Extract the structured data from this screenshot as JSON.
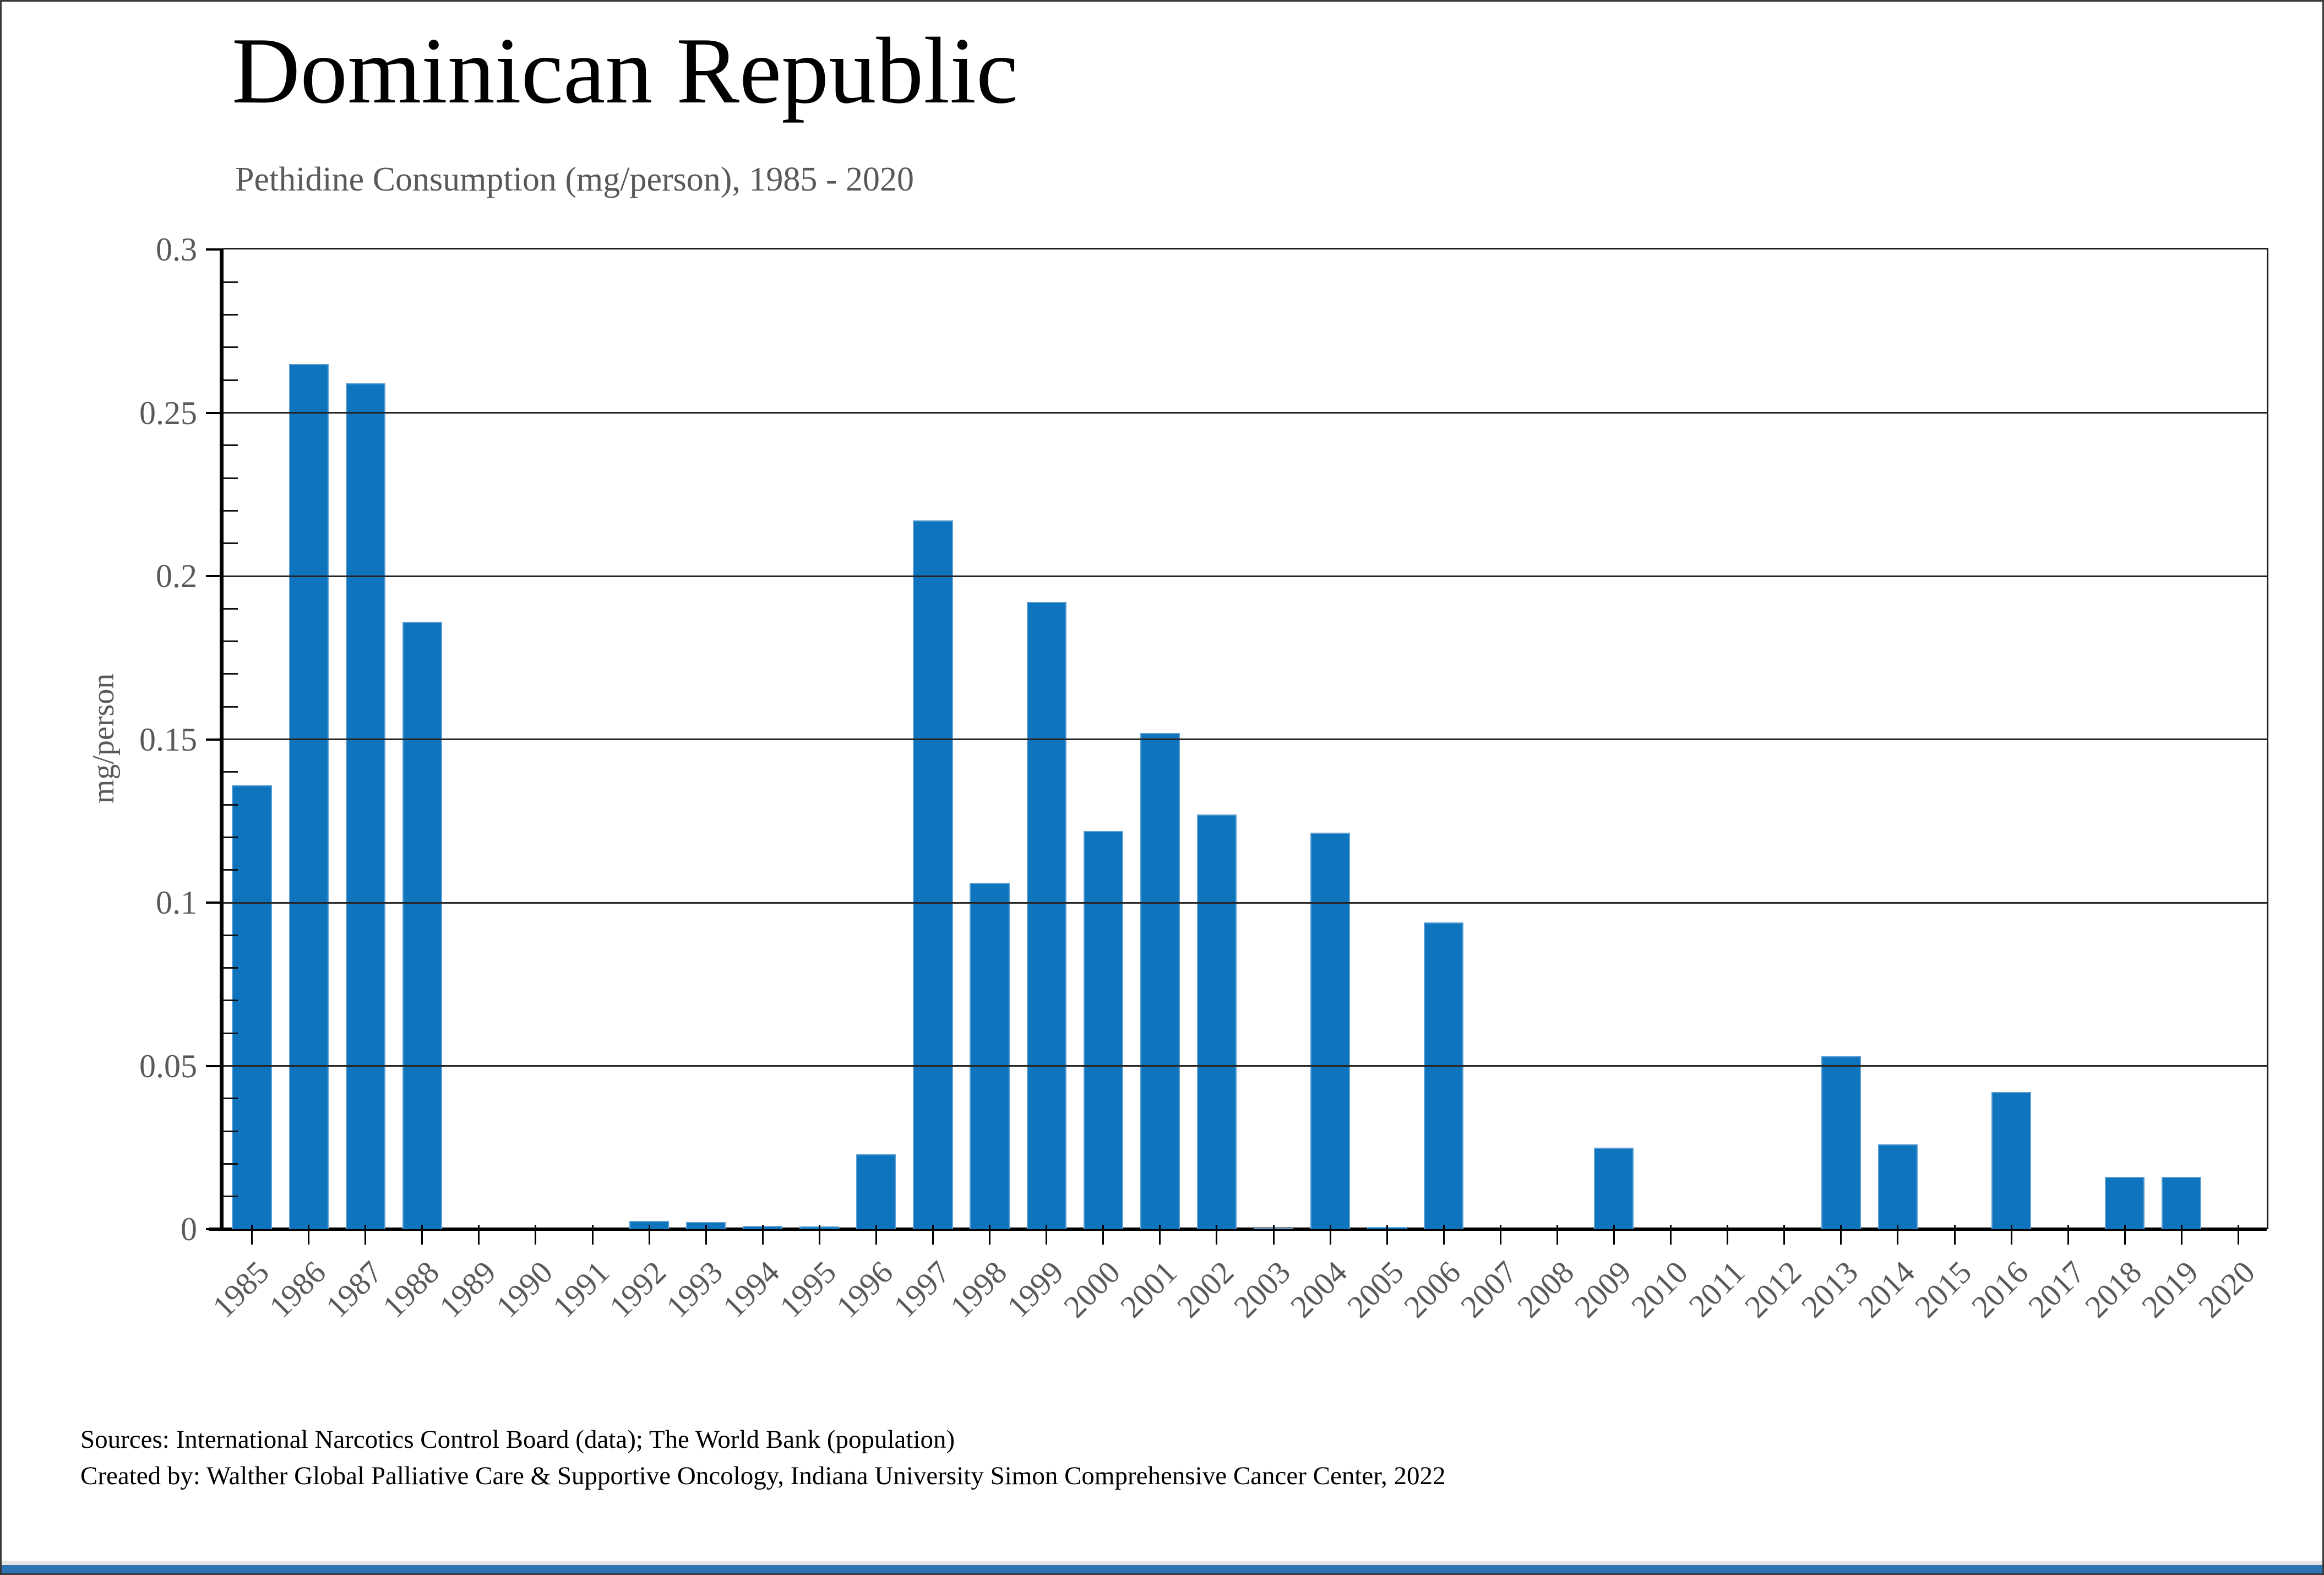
{
  "page": {
    "title": "Dominican Republic",
    "subtitle": "Pethidine Consumption (mg/person), 1985 - 2020"
  },
  "footer": {
    "sources_line": "Sources: International Narcotics Control Board (data); The World Bank (population)",
    "credit_line": "Created by: Walther Global Palliative Care & Supportive Oncology, Indiana University Simon Comprehensive Cancer Center, 2022"
  },
  "colors": {
    "bar": "#0e74bd",
    "bar_edge": "#5d9fd3",
    "axis": "#000000",
    "gridline": "#262626",
    "muted_text": "#595959",
    "bottom_accent": "#2e74b5",
    "bottom_shadow": "#e4e4e4"
  },
  "chart_data": {
    "type": "bar",
    "title": "Dominican Republic",
    "subtitle": "Pethidine Consumption (mg/person), 1985 - 2020",
    "xlabel": "",
    "ylabel": "mg/person",
    "ylim": [
      0,
      0.3
    ],
    "yticks": [
      0,
      0.05,
      0.1,
      0.15,
      0.2,
      0.25,
      0.3
    ],
    "ytick_labels": [
      "0",
      "0.05",
      "0.1",
      "0.15",
      "0.2",
      "0.25",
      "0.3"
    ],
    "minor_tick_step": 0.01,
    "grid": "horizontal major gridlines, black, on",
    "legend": "none",
    "categories": [
      "1985",
      "1986",
      "1987",
      "1988",
      "1989",
      "1990",
      "1991",
      "1992",
      "1993",
      "1994",
      "1995",
      "1996",
      "1997",
      "1998",
      "1999",
      "2000",
      "2001",
      "2002",
      "2003",
      "2004",
      "2005",
      "2006",
      "2007",
      "2008",
      "2009",
      "2010",
      "2011",
      "2012",
      "2013",
      "2014",
      "2015",
      "2016",
      "2017",
      "2018",
      "2019",
      "2020"
    ],
    "values": [
      0.136,
      0.265,
      0.259,
      0.186,
      0,
      0,
      0,
      0.0026,
      0.0022,
      0.001,
      0.0009,
      0.023,
      0.217,
      0.106,
      0.192,
      0.122,
      0.152,
      0.127,
      0.0004,
      0.1215,
      0.0006,
      0.094,
      0,
      0,
      0.025,
      0,
      0,
      0,
      0.053,
      0.026,
      0,
      0.042,
      0,
      0.016,
      0.016,
      0
    ]
  }
}
